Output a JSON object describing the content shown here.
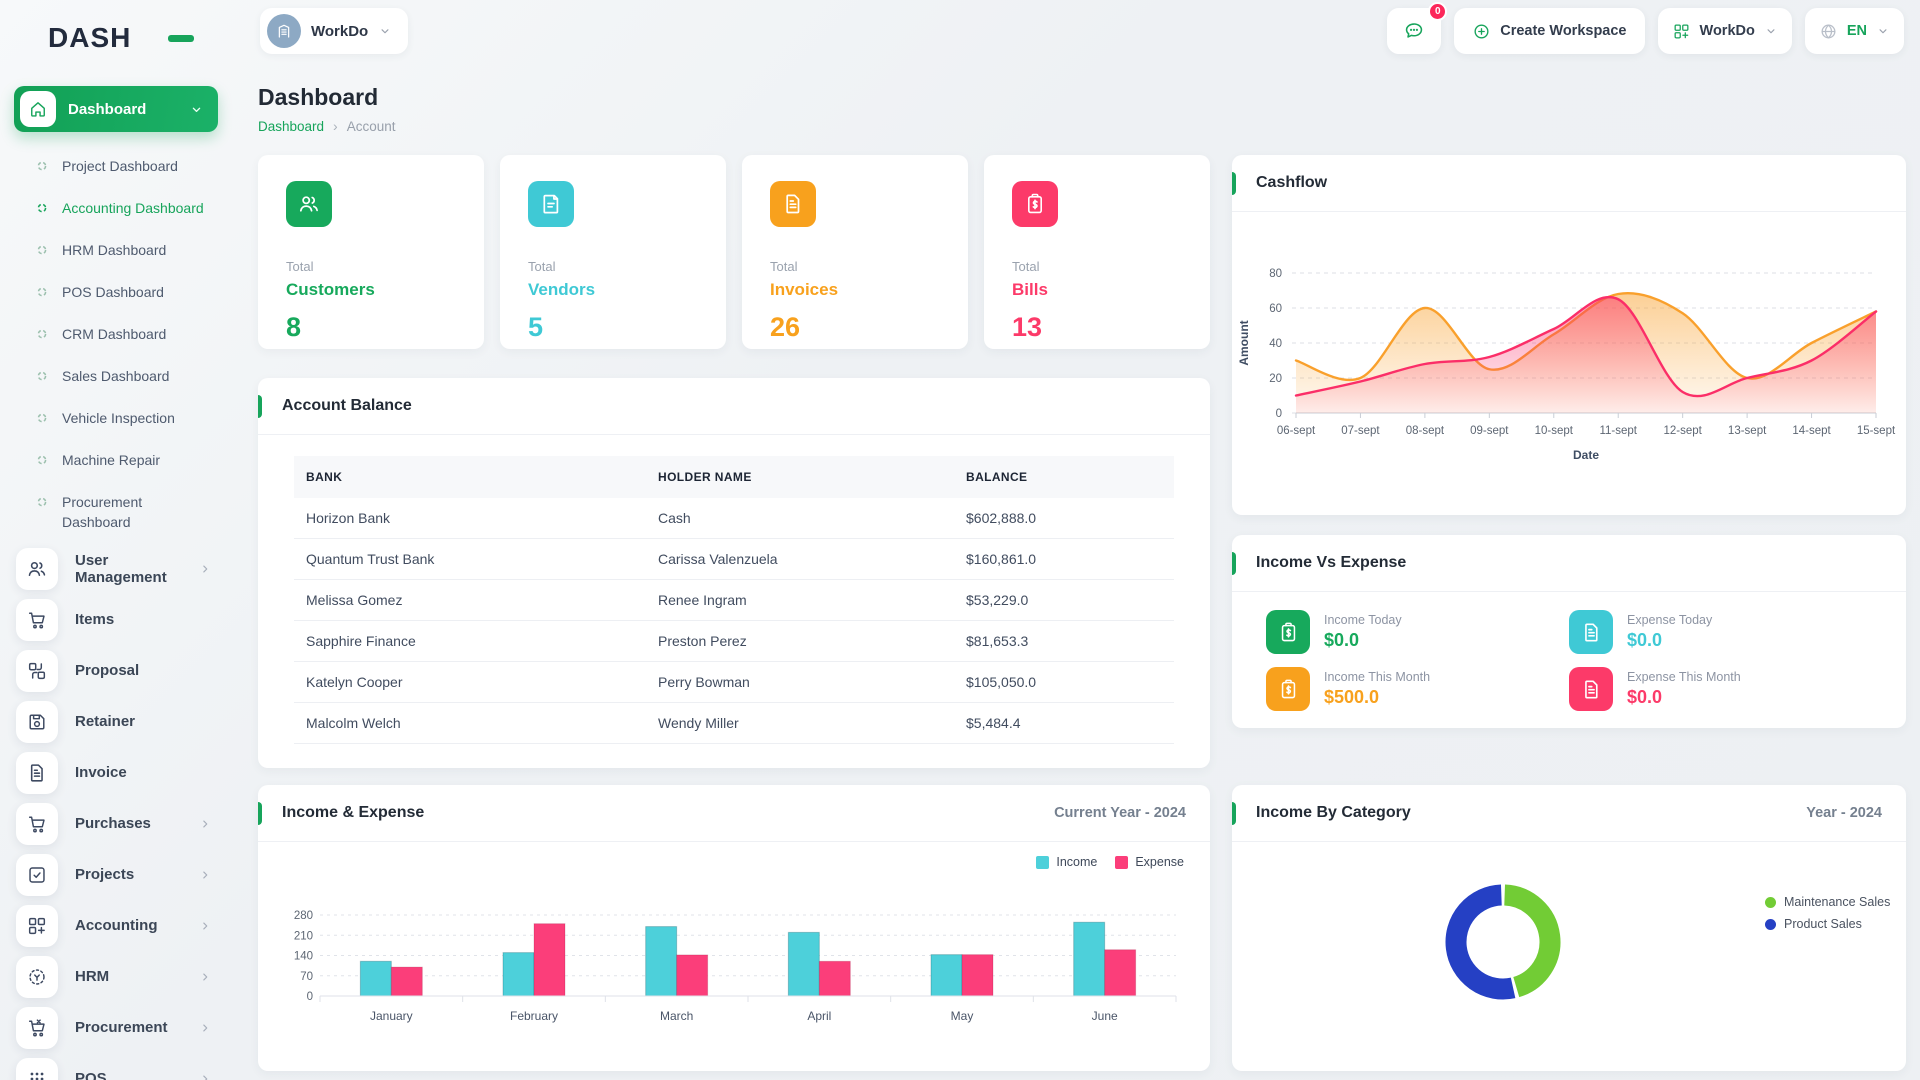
{
  "brand": {
    "name": "DASH"
  },
  "topbar": {
    "workspace_switcher": {
      "label": "WorkDo"
    },
    "messages": {
      "badge": "0"
    },
    "create_workspace": {
      "label": "Create Workspace"
    },
    "workdo_menu": {
      "label": "WorkDo"
    },
    "language": {
      "label": "EN"
    }
  },
  "sidebar": {
    "dashboard": {
      "label": "Dashboard"
    },
    "dashboard_children": [
      {
        "label": "Project Dashboard",
        "active": false
      },
      {
        "label": "Accounting Dashboard",
        "active": true
      },
      {
        "label": "HRM Dashboard",
        "active": false
      },
      {
        "label": "POS Dashboard",
        "active": false
      },
      {
        "label": "CRM Dashboard",
        "active": false
      },
      {
        "label": "Sales Dashboard",
        "active": false
      },
      {
        "label": "Vehicle Inspection",
        "active": false
      },
      {
        "label": "Machine Repair",
        "active": false
      },
      {
        "label": "Procurement Dashboard",
        "active": false
      }
    ],
    "items": [
      {
        "label": "User Management",
        "icon": "users",
        "expandable": true
      },
      {
        "label": "Items",
        "icon": "cart",
        "expandable": false
      },
      {
        "label": "Proposal",
        "icon": "proposal",
        "expandable": false
      },
      {
        "label": "Retainer",
        "icon": "save",
        "expandable": false
      },
      {
        "label": "Invoice",
        "icon": "file",
        "expandable": false
      },
      {
        "label": "Purchases",
        "icon": "cart",
        "expandable": true
      },
      {
        "label": "Projects",
        "icon": "check-square",
        "expandable": true
      },
      {
        "label": "Accounting",
        "icon": "grid-plus",
        "expandable": true
      },
      {
        "label": "HRM",
        "icon": "hrm-circle",
        "expandable": true
      },
      {
        "label": "Procurement",
        "icon": "cart-x",
        "expandable": true
      },
      {
        "label": "POS",
        "icon": "dots-grid",
        "expandable": true
      }
    ]
  },
  "page": {
    "title": "Dashboard",
    "breadcrumb": {
      "parent": "Dashboard",
      "current": "Account"
    }
  },
  "stats": [
    {
      "prefix": "Total",
      "label": "Customers",
      "value": "8",
      "color": "#17a95c",
      "icon": "users"
    },
    {
      "prefix": "Total",
      "label": "Vendors",
      "value": "5",
      "color": "#3fc9d5",
      "icon": "note"
    },
    {
      "prefix": "Total",
      "label": "Invoices",
      "value": "26",
      "color": "#f8a11d",
      "icon": "invoice"
    },
    {
      "prefix": "Total",
      "label": "Bills",
      "value": "13",
      "color": "#fc3a69",
      "icon": "bill"
    }
  ],
  "account_balance": {
    "title": "Account Balance",
    "columns": [
      "BANK",
      "HOLDER NAME",
      "BALANCE"
    ],
    "rows": [
      {
        "bank": "Horizon Bank",
        "holder": "Cash",
        "balance": "$602,888.0"
      },
      {
        "bank": "Quantum Trust Bank",
        "holder": "Carissa Valenzuela",
        "balance": "$160,861.0"
      },
      {
        "bank": "Melissa Gomez",
        "holder": "Renee Ingram",
        "balance": "$53,229.0"
      },
      {
        "bank": "Sapphire Finance",
        "holder": "Preston Perez",
        "balance": "$81,653.3"
      },
      {
        "bank": "Katelyn Cooper",
        "holder": "Perry Bowman",
        "balance": "$105,050.0"
      },
      {
        "bank": "Malcolm Welch",
        "holder": "Wendy Miller",
        "balance": "$5,484.4"
      }
    ]
  },
  "income_vs_expense": {
    "title": "Income Vs Expense",
    "items": [
      {
        "label": "Income Today",
        "value": "$0.0",
        "color": "#17a95c",
        "icon": "clipboard-dollar"
      },
      {
        "label": "Expense Today",
        "value": "$0.0",
        "color": "#3fc9d5",
        "icon": "bill-file"
      },
      {
        "label": "Income This Month",
        "value": "$500.0",
        "color": "#f8a11d",
        "icon": "clipboard-dollar"
      },
      {
        "label": "Expense This Month",
        "value": "$0.0",
        "color": "#fc3a69",
        "icon": "bill-file"
      }
    ]
  },
  "chart_data": [
    {
      "type": "area",
      "title": "Cashflow",
      "x": [
        "06-sept",
        "07-sept",
        "08-sept",
        "09-sept",
        "10-sept",
        "11-sept",
        "12-sept",
        "13-sept",
        "14-sept",
        "15-sept"
      ],
      "xlabel": "Date",
      "ylabel": "Amount",
      "ylim": [
        0,
        80
      ],
      "yticks": [
        0,
        20,
        40,
        60,
        80
      ],
      "grid": true,
      "legend": false,
      "series": [
        {
          "name": "series_1",
          "color": "#f9a02c",
          "values": [
            30,
            20,
            60,
            25,
            45,
            68,
            57,
            20,
            40,
            58
          ]
        },
        {
          "name": "series_2",
          "color": "#fb2e68",
          "values": [
            10,
            18,
            28,
            32,
            48,
            65,
            12,
            20,
            30,
            58
          ]
        }
      ]
    },
    {
      "type": "bar",
      "title": "Income & Expense",
      "period_label": "Current Year - 2024",
      "categories": [
        "January",
        "February",
        "March",
        "April",
        "May",
        "June"
      ],
      "ylim": [
        0,
        280
      ],
      "yticks": [
        0,
        70,
        140,
        210,
        280
      ],
      "grid": true,
      "legend_position": "top-right",
      "series": [
        {
          "name": "Income",
          "color": "#4dd0da",
          "values": [
            120,
            150,
            240,
            220,
            143,
            255
          ]
        },
        {
          "name": "Expense",
          "color": "#fb3e7a",
          "values": [
            100,
            250,
            142,
            120,
            143,
            160
          ]
        }
      ]
    },
    {
      "type": "pie",
      "donut": true,
      "title": "Income By Category",
      "period_label": "Year - 2024",
      "labels": [
        "Maintenance Sales",
        "Product Sales"
      ],
      "values": [
        46,
        54
      ],
      "colors": [
        "#72cc35",
        "#2540c4"
      ],
      "legend_position": "right"
    }
  ]
}
